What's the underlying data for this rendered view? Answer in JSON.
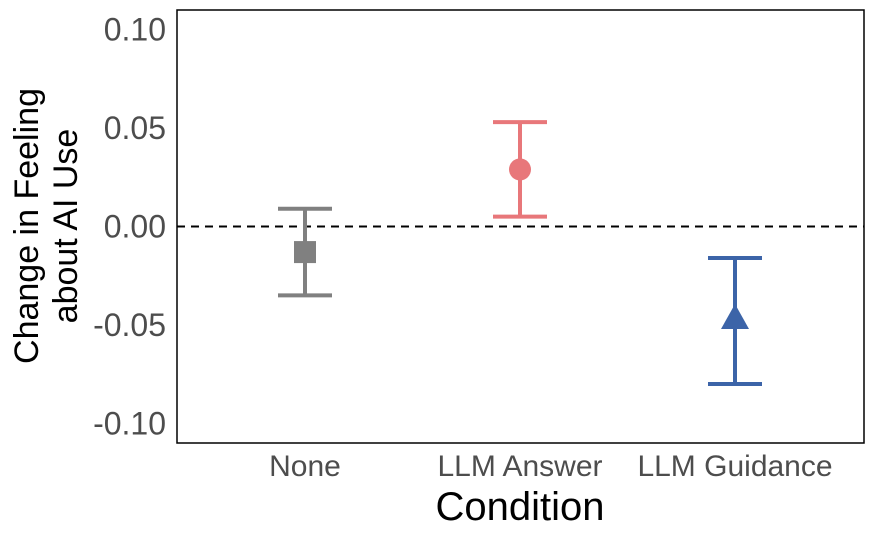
{
  "chart_data": {
    "type": "errorbar",
    "xlabel": "Condition",
    "ylabel_lines": [
      "Change in Feeling",
      "about AI Use"
    ],
    "ylim": [
      -0.11,
      0.11
    ],
    "yticks": [
      {
        "value": 0.1,
        "label": "0.10"
      },
      {
        "value": 0.05,
        "label": "0.05"
      },
      {
        "value": 0.0,
        "label": "0.00"
      },
      {
        "value": -0.05,
        "label": "-0.05"
      },
      {
        "value": -0.1,
        "label": "-0.10"
      }
    ],
    "reference_line": {
      "value": 0.0,
      "style": "dashed"
    },
    "categories": [
      "None",
      "LLM Answer",
      "LLM Guidance"
    ],
    "series": [
      {
        "category": "None",
        "mean": -0.013,
        "lower": -0.035,
        "upper": 0.009,
        "color": "#808080",
        "marker": "square"
      },
      {
        "category": "LLM Answer",
        "mean": 0.029,
        "lower": 0.005,
        "upper": 0.053,
        "color": "#E8777A",
        "marker": "circle"
      },
      {
        "category": "LLM Guidance",
        "mean": -0.047,
        "lower": -0.08,
        "upper": -0.016,
        "color": "#3C64A8",
        "marker": "triangle"
      }
    ],
    "grid": false,
    "legend": "none"
  }
}
